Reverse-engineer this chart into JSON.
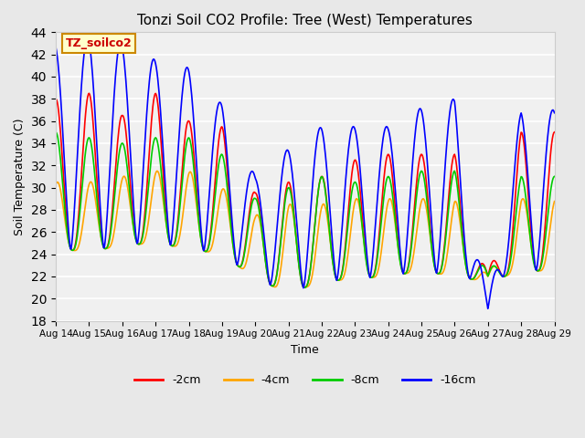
{
  "title": "Tonzi Soil CO2 Profile: Tree (West) Temperatures",
  "xlabel": "Time",
  "ylabel": "Soil Temperature (C)",
  "ylim": [
    18,
    44
  ],
  "yticks": [
    18,
    20,
    22,
    24,
    26,
    28,
    30,
    32,
    34,
    36,
    38,
    40,
    42,
    44
  ],
  "xlim_days": 15,
  "xtick_labels": [
    "Aug 14",
    "Aug 15",
    "Aug 16",
    "Aug 17",
    "Aug 18",
    "Aug 19",
    "Aug 20",
    "Aug 21",
    "Aug 22",
    "Aug 23",
    "Aug 24",
    "Aug 25",
    "Aug 26",
    "Aug 27",
    "Aug 28",
    "Aug 29"
  ],
  "legend_labels": [
    "-2cm",
    "-4cm",
    "-8cm",
    "-16cm"
  ],
  "legend_colors": [
    "#ff0000",
    "#ffa500",
    "#00cc00",
    "#0000ff"
  ],
  "annotation_text": "TZ_soilco2",
  "annotation_color": "#cc0000",
  "annotation_bg": "#ffffcc",
  "annotation_border": "#cc8800",
  "fig_bg": "#e8e8e8",
  "ax_bg": "#f0f0f0",
  "line_width": 1.2,
  "points_per_day": 48,
  "days": 15,
  "trough_temps": [
    24.5,
    24.2,
    24.8,
    25.0,
    24.5,
    24.0,
    21.8,
    20.5,
    21.5,
    21.8,
    22.0,
    22.5,
    22.0,
    21.5,
    22.5
  ],
  "peak_temps_2cm": [
    38.0,
    38.5,
    36.5,
    38.5,
    36.0,
    35.5,
    29.5,
    30.5,
    31.0,
    32.5,
    33.0,
    33.0,
    33.0,
    22.0,
    35.0
  ],
  "peak_temps_4cm": [
    30.5,
    30.5,
    31.0,
    31.5,
    31.5,
    30.0,
    27.5,
    28.5,
    28.5,
    29.0,
    29.0,
    29.0,
    29.0,
    22.0,
    29.0
  ],
  "peak_temps_8cm": [
    35.0,
    34.5,
    34.0,
    34.5,
    34.5,
    33.0,
    29.0,
    30.0,
    31.0,
    30.5,
    31.0,
    31.5,
    31.5,
    22.0,
    31.0
  ],
  "peak_temps_16cm": [
    43.0,
    43.5,
    43.0,
    41.5,
    40.8,
    37.5,
    31.0,
    33.5,
    35.5,
    35.5,
    35.5,
    37.2,
    38.0,
    19.0,
    37.0
  ]
}
